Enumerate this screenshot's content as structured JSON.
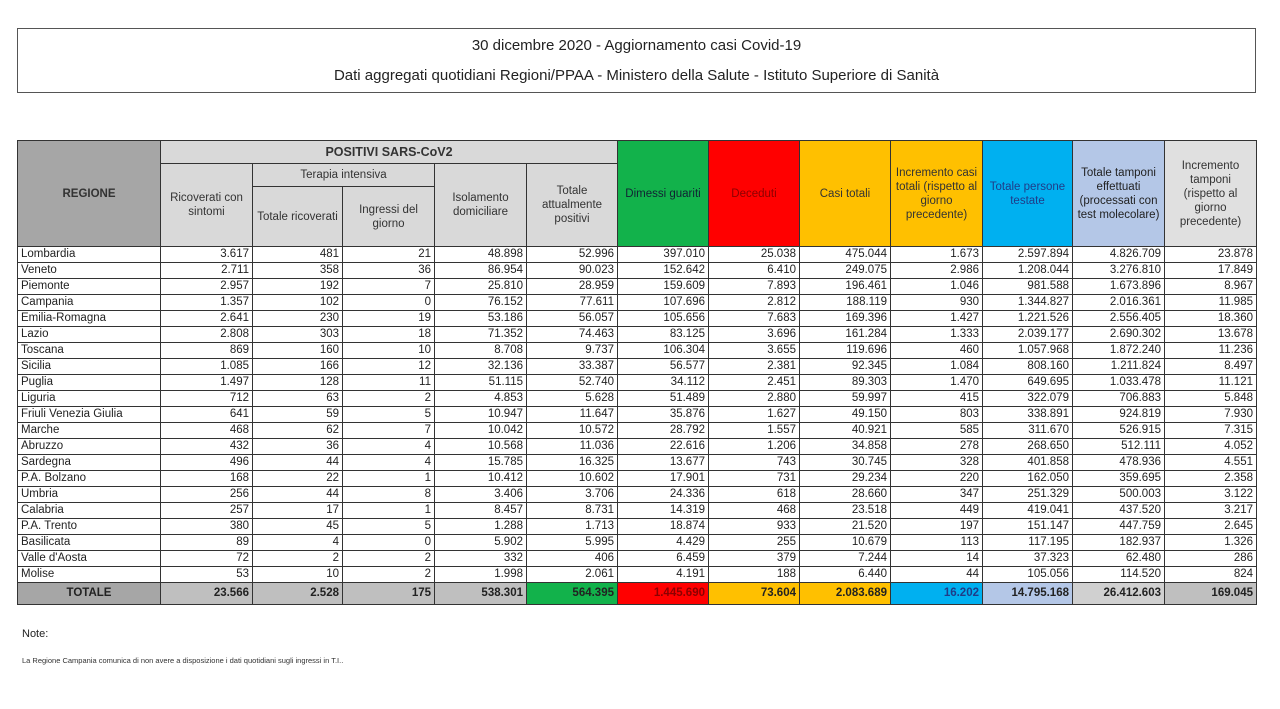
{
  "title": {
    "line1": "30 dicembre 2020 - Aggiornamento casi Covid-19",
    "line2": "Dati aggregati quotidiani Regioni/PPAA - Ministero della Salute - Istituto Superiore di Sanità"
  },
  "headers": {
    "regione": "REGIONE",
    "positivi": "POSITIVI SARS-CoV2",
    "ricoverati": "Ricoverati con sintomi",
    "terapia": "Terapia intensiva",
    "totale_ricoverati": "Totale ricoverati",
    "ingressi": "Ingressi del giorno",
    "isolamento": "Isolamento domiciliare",
    "totale_positivi": "Totale attualmente positivi",
    "dimessi": "Dimessi guariti",
    "deceduti": "Deceduti",
    "casi_totali": "Casi totali",
    "incremento_casi": "Incremento casi totali (rispetto al giorno precedente)",
    "persone_testate": "Totale persone testate",
    "tamponi": "Totale tamponi effettuati (processati con test molecolare)",
    "incremento_tamponi": "Incremento tamponi (rispetto al giorno precedente)"
  },
  "rows": [
    [
      "Lombardia",
      "3.617",
      "481",
      "21",
      "48.898",
      "52.996",
      "397.010",
      "25.038",
      "475.044",
      "1.673",
      "2.597.894",
      "4.826.709",
      "23.878"
    ],
    [
      "Veneto",
      "2.711",
      "358",
      "36",
      "86.954",
      "90.023",
      "152.642",
      "6.410",
      "249.075",
      "2.986",
      "1.208.044",
      "3.276.810",
      "17.849"
    ],
    [
      "Piemonte",
      "2.957",
      "192",
      "7",
      "25.810",
      "28.959",
      "159.609",
      "7.893",
      "196.461",
      "1.046",
      "981.588",
      "1.673.896",
      "8.967"
    ],
    [
      "Campania",
      "1.357",
      "102",
      "0",
      "76.152",
      "77.611",
      "107.696",
      "2.812",
      "188.119",
      "930",
      "1.344.827",
      "2.016.361",
      "11.985"
    ],
    [
      "Emilia-Romagna",
      "2.641",
      "230",
      "19",
      "53.186",
      "56.057",
      "105.656",
      "7.683",
      "169.396",
      "1.427",
      "1.221.526",
      "2.556.405",
      "18.360"
    ],
    [
      "Lazio",
      "2.808",
      "303",
      "18",
      "71.352",
      "74.463",
      "83.125",
      "3.696",
      "161.284",
      "1.333",
      "2.039.177",
      "2.690.302",
      "13.678"
    ],
    [
      "Toscana",
      "869",
      "160",
      "10",
      "8.708",
      "9.737",
      "106.304",
      "3.655",
      "119.696",
      "460",
      "1.057.968",
      "1.872.240",
      "11.236"
    ],
    [
      "Sicilia",
      "1.085",
      "166",
      "12",
      "32.136",
      "33.387",
      "56.577",
      "2.381",
      "92.345",
      "1.084",
      "808.160",
      "1.211.824",
      "8.497"
    ],
    [
      "Puglia",
      "1.497",
      "128",
      "11",
      "51.115",
      "52.740",
      "34.112",
      "2.451",
      "89.303",
      "1.470",
      "649.695",
      "1.033.478",
      "11.121"
    ],
    [
      "Liguria",
      "712",
      "63",
      "2",
      "4.853",
      "5.628",
      "51.489",
      "2.880",
      "59.997",
      "415",
      "322.079",
      "706.883",
      "5.848"
    ],
    [
      "Friuli Venezia Giulia",
      "641",
      "59",
      "5",
      "10.947",
      "11.647",
      "35.876",
      "1.627",
      "49.150",
      "803",
      "338.891",
      "924.819",
      "7.930"
    ],
    [
      "Marche",
      "468",
      "62",
      "7",
      "10.042",
      "10.572",
      "28.792",
      "1.557",
      "40.921",
      "585",
      "311.670",
      "526.915",
      "7.315"
    ],
    [
      "Abruzzo",
      "432",
      "36",
      "4",
      "10.568",
      "11.036",
      "22.616",
      "1.206",
      "34.858",
      "278",
      "268.650",
      "512.111",
      "4.052"
    ],
    [
      "Sardegna",
      "496",
      "44",
      "4",
      "15.785",
      "16.325",
      "13.677",
      "743",
      "30.745",
      "328",
      "401.858",
      "478.936",
      "4.551"
    ],
    [
      "P.A. Bolzano",
      "168",
      "22",
      "1",
      "10.412",
      "10.602",
      "17.901",
      "731",
      "29.234",
      "220",
      "162.050",
      "359.695",
      "2.358"
    ],
    [
      "Umbria",
      "256",
      "44",
      "8",
      "3.406",
      "3.706",
      "24.336",
      "618",
      "28.660",
      "347",
      "251.329",
      "500.003",
      "3.122"
    ],
    [
      "Calabria",
      "257",
      "17",
      "1",
      "8.457",
      "8.731",
      "14.319",
      "468",
      "23.518",
      "449",
      "419.041",
      "437.520",
      "3.217"
    ],
    [
      "P.A. Trento",
      "380",
      "45",
      "5",
      "1.288",
      "1.713",
      "18.874",
      "933",
      "21.520",
      "197",
      "151.147",
      "447.759",
      "2.645"
    ],
    [
      "Basilicata",
      "89",
      "4",
      "0",
      "5.902",
      "5.995",
      "4.429",
      "255",
      "10.679",
      "113",
      "117.195",
      "182.937",
      "1.326"
    ],
    [
      "Valle d'Aosta",
      "72",
      "2",
      "2",
      "332",
      "406",
      "6.459",
      "379",
      "7.244",
      "14",
      "37.323",
      "62.480",
      "286"
    ],
    [
      "Molise",
      "53",
      "10",
      "2",
      "1.998",
      "2.061",
      "4.191",
      "188",
      "6.440",
      "44",
      "105.056",
      "114.520",
      "824"
    ]
  ],
  "totals": [
    "TOTALE",
    "23.566",
    "2.528",
    "175",
    "538.301",
    "564.395",
    "1.445.690",
    "73.604",
    "2.083.689",
    "16.202",
    "14.795.168",
    "26.412.603",
    "169.045"
  ],
  "notes": {
    "label": "Note:",
    "text": "La Regione Campania comunica di non avere a disposizione i dati quotidiani sugli ingressi in T.I.."
  },
  "colors": {
    "dimessi": "#12b24b",
    "deceduti": "#ff0000",
    "casi": "#ffc000",
    "persone_testate": "#00b0f0",
    "tamponi": "#b4c7e7"
  }
}
